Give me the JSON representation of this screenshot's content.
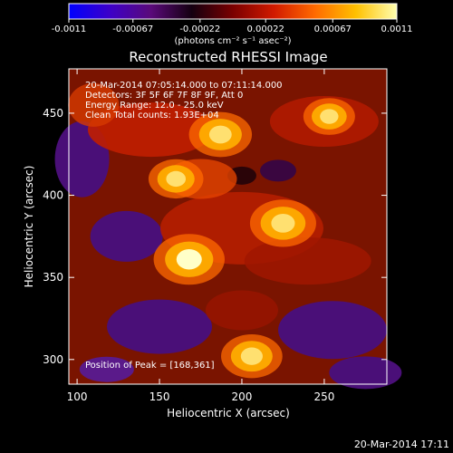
{
  "chart_data": {
    "type": "heatmap",
    "title": "Reconstructed RHESSI Image",
    "xlabel": "Heliocentric X (arcsec)",
    "ylabel": "Heliocentric Y (arcsec)",
    "xlim": [
      95,
      288
    ],
    "ylim": [
      285,
      477
    ],
    "x_ticks": [
      100,
      150,
      200,
      250
    ],
    "y_ticks": [
      300,
      350,
      400,
      450
    ],
    "colorbar": {
      "min": -0.0011,
      "max": 0.0011,
      "tick_values": [
        -0.0011,
        -0.00067,
        -0.00022,
        0.00022,
        0.00067,
        0.0011
      ],
      "tick_labels": [
        "-0.0011",
        "-0.00067",
        "-0.00022",
        "0.00022",
        "0.00067",
        "0.0011"
      ],
      "unit_label": "(photons cm⁻² s⁻¹ asec⁻²)",
      "colormap_stops": [
        "#0000ff",
        "#3d00c8",
        "#5a0a7a",
        "#140010",
        "#7a0000",
        "#d11a00",
        "#ff6a00",
        "#ffc000",
        "#ffffb0"
      ]
    },
    "annotations": [
      "20-Mar-2014 07:05:14.000 to 07:11:14.000",
      "Detectors: 3F 5F 6F 7F 8F 9F, Att 0",
      "Energy Range: 12.0 - 25.0 keV",
      "Clean     Total counts: 1.93E+04"
    ],
    "peak_label": "Position of Peak = [168,361]",
    "peak": [
      168,
      361
    ],
    "sources": [
      {
        "x": 168,
        "y": 361,
        "value": 0.0011
      },
      {
        "x": 225,
        "y": 383,
        "value": 0.00095
      },
      {
        "x": 187,
        "y": 437,
        "value": 0.00085
      },
      {
        "x": 206,
        "y": 302,
        "value": 0.0008
      },
      {
        "x": 160,
        "y": 410,
        "value": 0.0006
      },
      {
        "x": 253,
        "y": 448,
        "value": 0.0005
      }
    ]
  },
  "footer": {
    "timestamp": "20-Mar-2014 17:11"
  }
}
